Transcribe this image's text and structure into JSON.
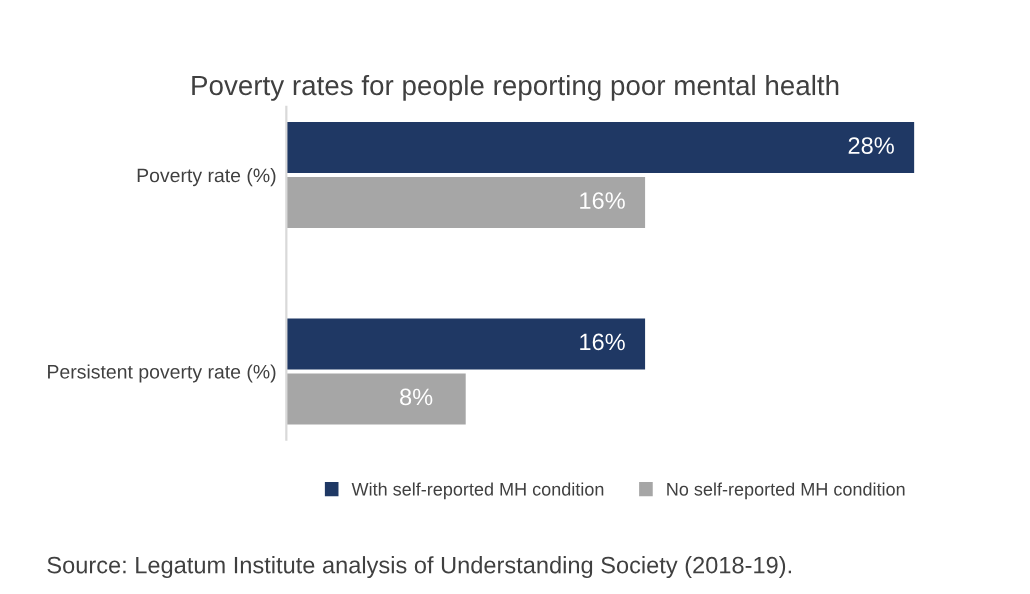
{
  "chart_data": {
    "type": "bar",
    "orientation": "horizontal",
    "title": "Poverty rates for people reporting poor mental health",
    "categories": [
      "Poverty rate (%)",
      "Persistent poverty rate (%)"
    ],
    "series": [
      {
        "name": "With self-reported MH condition",
        "color": "#1f3864",
        "values": [
          28,
          16
        ],
        "value_labels": [
          "28%",
          "16%"
        ]
      },
      {
        "name": "No self-reported MH condition",
        "color": "#a6a6a6",
        "values": [
          16,
          8
        ],
        "value_labels": [
          "16%",
          "8%"
        ]
      }
    ],
    "legend": "bottom",
    "grid": false,
    "annotations": [
      "Source: Legatum Institute analysis of Understanding Society (2018-19)."
    ]
  }
}
